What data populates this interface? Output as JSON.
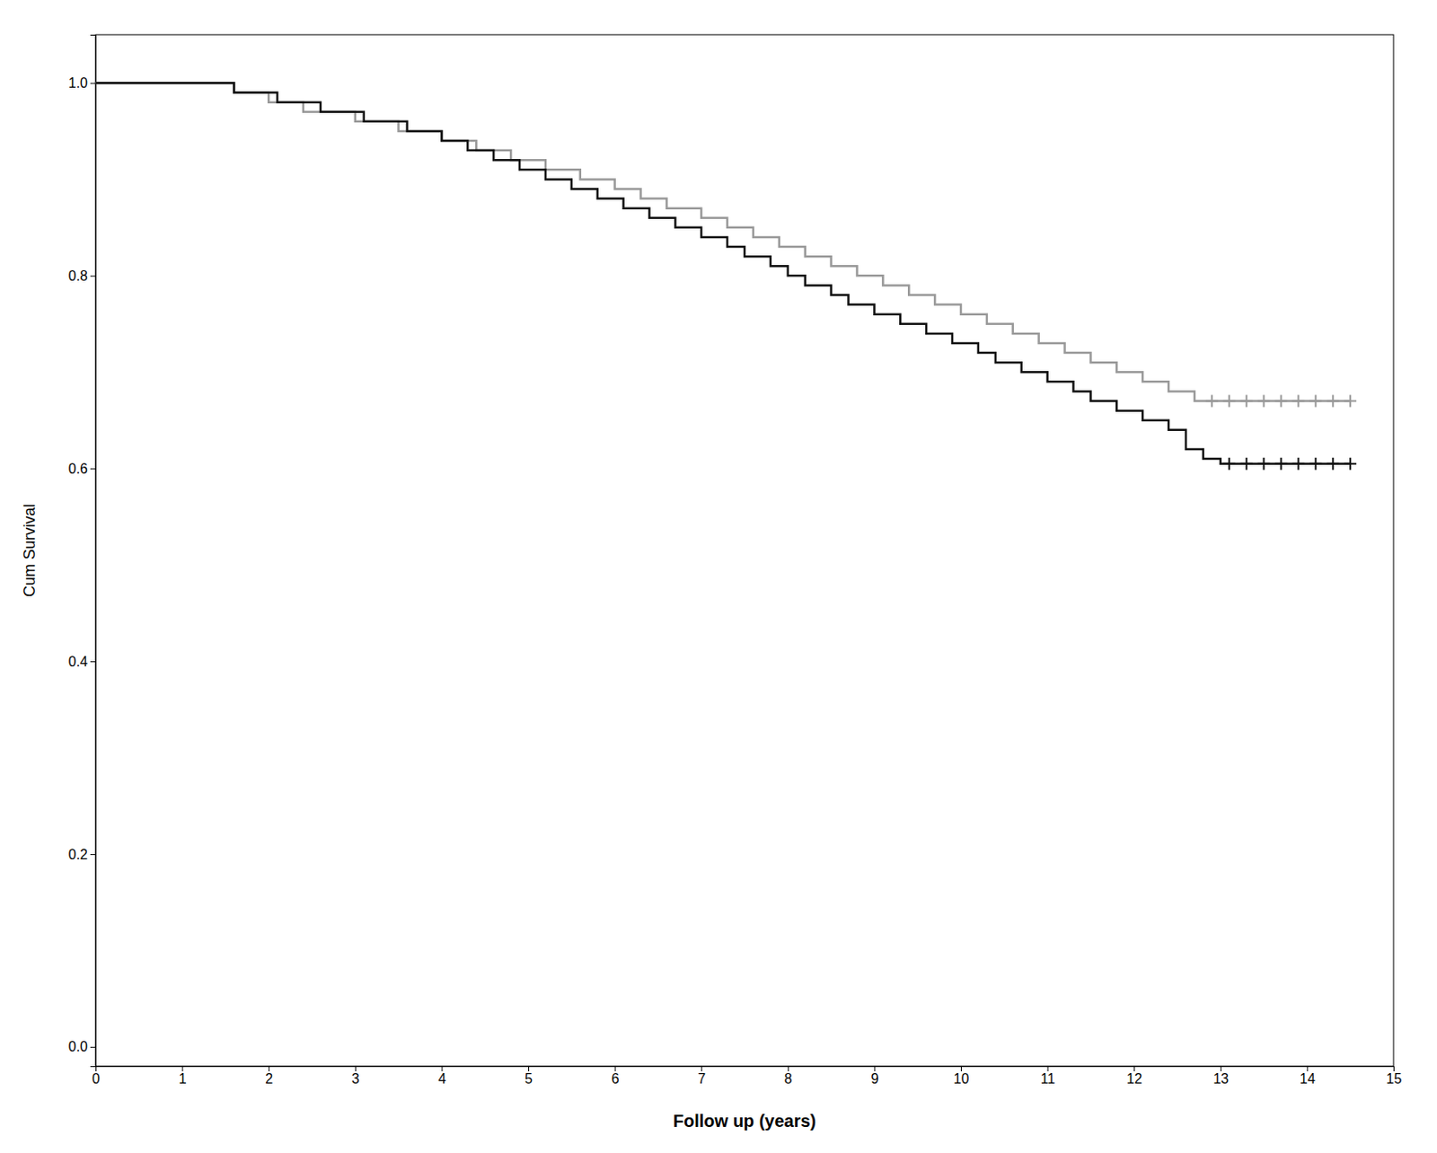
{
  "chart_data": {
    "type": "line",
    "xlabel": "Follow up (years)",
    "ylabel": "Cum Survival",
    "xlim": [
      0,
      15
    ],
    "ylim": [
      -0.02,
      1.05
    ],
    "xticks": [
      0,
      1,
      2,
      3,
      4,
      5,
      6,
      7,
      8,
      9,
      10,
      11,
      12,
      13,
      14,
      15
    ],
    "yticks": [
      {
        "value": 0,
        "label": "0.0"
      },
      0.2,
      0.4,
      0.6,
      0.8,
      {
        "value": 1,
        "label": "1.0"
      }
    ],
    "grid": false,
    "series": [
      {
        "type": "line",
        "color": "#999999",
        "line_style": "solid",
        "x": [
          0,
          1.6,
          1.6,
          2.0,
          2.0,
          2.4,
          2.4,
          3.0,
          3.0,
          3.5,
          3.5,
          4.0,
          4.0,
          4.4,
          4.4,
          4.8,
          4.8,
          5.2,
          5.2,
          5.6,
          5.6,
          6.0,
          6.0,
          6.3,
          6.3,
          6.6,
          6.6,
          7.0,
          7.0,
          7.3,
          7.3,
          7.6,
          7.6,
          7.9,
          7.9,
          8.2,
          8.2,
          8.5,
          8.5,
          8.8,
          8.8,
          9.1,
          9.1,
          9.4,
          9.4,
          9.7,
          9.7,
          10.0,
          10.0,
          10.3,
          10.3,
          10.6,
          10.6,
          10.9,
          10.9,
          11.2,
          11.2,
          11.5,
          11.5,
          11.8,
          11.8,
          12.1,
          12.1,
          12.4,
          12.4,
          12.7,
          12.7,
          14.5
        ],
        "values": [
          1.0,
          1.0,
          0.99,
          0.99,
          0.98,
          0.98,
          0.97,
          0.97,
          0.96,
          0.96,
          0.95,
          0.95,
          0.94,
          0.94,
          0.93,
          0.93,
          0.92,
          0.92,
          0.91,
          0.91,
          0.9,
          0.9,
          0.89,
          0.89,
          0.88,
          0.88,
          0.87,
          0.87,
          0.86,
          0.86,
          0.85,
          0.85,
          0.84,
          0.84,
          0.83,
          0.83,
          0.82,
          0.82,
          0.81,
          0.81,
          0.8,
          0.8,
          0.79,
          0.79,
          0.78,
          0.78,
          0.77,
          0.77,
          0.76,
          0.76,
          0.75,
          0.75,
          0.74,
          0.74,
          0.73,
          0.73,
          0.72,
          0.72,
          0.71,
          0.71,
          0.7,
          0.7,
          0.69,
          0.69,
          0.68,
          0.68,
          0.67,
          0.67
        ]
      },
      {
        "type": "line",
        "color": "#111111",
        "line_style": "solid",
        "x": [
          0,
          1.6,
          1.6,
          2.1,
          2.1,
          2.6,
          2.6,
          3.1,
          3.1,
          3.6,
          3.6,
          4.0,
          4.0,
          4.3,
          4.3,
          4.6,
          4.6,
          4.9,
          4.9,
          5.2,
          5.2,
          5.5,
          5.5,
          5.8,
          5.8,
          6.1,
          6.1,
          6.4,
          6.4,
          6.7,
          6.7,
          7.0,
          7.0,
          7.3,
          7.3,
          7.5,
          7.5,
          7.8,
          7.8,
          8.0,
          8.0,
          8.2,
          8.2,
          8.5,
          8.5,
          8.7,
          8.7,
          9.0,
          9.0,
          9.3,
          9.3,
          9.6,
          9.6,
          9.9,
          9.9,
          10.2,
          10.2,
          10.4,
          10.4,
          10.7,
          10.7,
          11.0,
          11.0,
          11.3,
          11.3,
          11.5,
          11.5,
          11.8,
          11.8,
          12.1,
          12.1,
          12.4,
          12.4,
          12.6,
          12.6,
          12.8,
          12.8,
          13.0,
          13.0,
          14.5
        ],
        "values": [
          1.0,
          1.0,
          0.99,
          0.99,
          0.98,
          0.98,
          0.97,
          0.97,
          0.96,
          0.96,
          0.95,
          0.95,
          0.94,
          0.94,
          0.93,
          0.93,
          0.92,
          0.92,
          0.91,
          0.91,
          0.9,
          0.9,
          0.89,
          0.89,
          0.88,
          0.88,
          0.87,
          0.87,
          0.86,
          0.86,
          0.85,
          0.85,
          0.84,
          0.84,
          0.83,
          0.83,
          0.82,
          0.82,
          0.81,
          0.81,
          0.8,
          0.8,
          0.79,
          0.79,
          0.78,
          0.78,
          0.77,
          0.77,
          0.76,
          0.76,
          0.75,
          0.75,
          0.74,
          0.74,
          0.73,
          0.73,
          0.72,
          0.72,
          0.71,
          0.71,
          0.7,
          0.7,
          0.69,
          0.69,
          0.68,
          0.68,
          0.67,
          0.67,
          0.66,
          0.66,
          0.65,
          0.65,
          0.64,
          0.64,
          0.62,
          0.62,
          0.61,
          0.61,
          0.605,
          0.605
        ]
      },
      {
        "type": "scatter",
        "color": "#999999",
        "marker": "plus",
        "x": [
          12.9,
          13.1,
          13.3,
          13.5,
          13.7,
          13.9,
          14.1,
          14.3,
          14.5
        ],
        "values": [
          0.67,
          0.67,
          0.67,
          0.67,
          0.67,
          0.67,
          0.67,
          0.67,
          0.67
        ]
      },
      {
        "type": "scatter",
        "color": "#111111",
        "marker": "plus",
        "x": [
          13.1,
          13.3,
          13.5,
          13.7,
          13.9,
          14.1,
          14.3,
          14.5
        ],
        "values": [
          0.605,
          0.605,
          0.605,
          0.605,
          0.605,
          0.605,
          0.605,
          0.605
        ]
      }
    ]
  }
}
